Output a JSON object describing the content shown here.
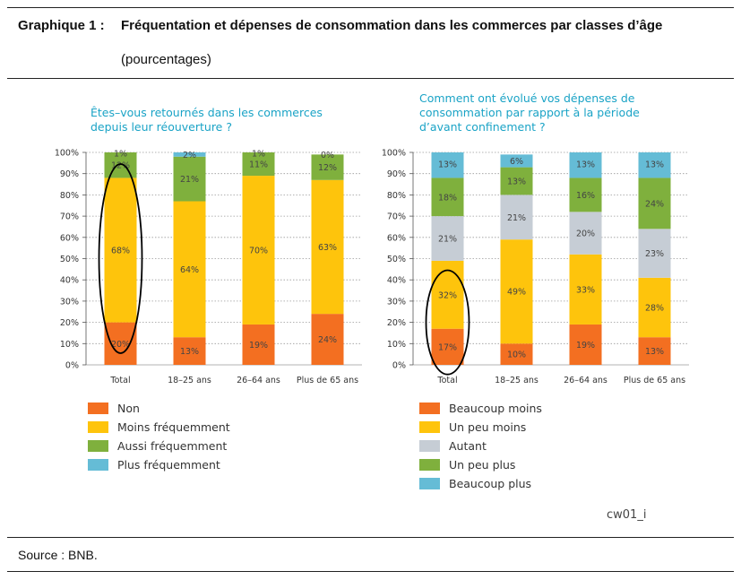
{
  "header": {
    "label": "Graphique 1 :",
    "title": "Fréquentation et dépenses de consommation dans les commerces par classes d’âge",
    "subtitle": "(pourcentages)"
  },
  "colors": {
    "orange": "#f36f21",
    "yellow": "#fec40c",
    "green": "#7fb03d",
    "grey": "#c6cdd5",
    "blue": "#65bcd6",
    "question": "#1aa3c6"
  },
  "chart_data": [
    {
      "type": "bar",
      "stacked": true,
      "title": "Êtes–vous retournés dans les commerces depuis leur réouverture ?",
      "categories": [
        "Total",
        "18–25 ans",
        "26–64 ans",
        "Plus de 65 ans"
      ],
      "ylim": [
        0,
        100
      ],
      "yticks": [
        "0%",
        "10%",
        "20%",
        "30%",
        "40%",
        "50%",
        "60%",
        "70%",
        "80%",
        "90%",
        "100%"
      ],
      "grid": true,
      "legend_position": "bottom",
      "series": [
        {
          "name": "Non",
          "color": "#f36f21",
          "values": [
            20,
            13,
            19,
            24
          ],
          "labels": [
            "20%",
            "13%",
            "19%",
            "24%"
          ]
        },
        {
          "name": "Moins fréquemment",
          "color": "#fec40c",
          "values": [
            68,
            64,
            70,
            63
          ],
          "labels": [
            "68%",
            "64%",
            "70%",
            "63%"
          ]
        },
        {
          "name": "Aussi fréquemment",
          "color": "#7fb03d",
          "values": [
            12,
            21,
            11,
            12
          ],
          "labels": [
            "12%",
            "21%",
            "11%",
            "12%"
          ]
        },
        {
          "name": "Plus fréquemment",
          "color": "#65bcd6",
          "values": [
            1,
            2,
            1,
            0
          ],
          "labels": [
            "1%",
            "2%",
            "1%",
            "0%"
          ]
        }
      ]
    },
    {
      "type": "bar",
      "stacked": true,
      "title": "Comment ont évolué vos dépenses de consommation par rapport à la période d’avant confinement ?",
      "categories": [
        "Total",
        "18–25 ans",
        "26–64 ans",
        "Plus de 65 ans"
      ],
      "ylim": [
        0,
        100
      ],
      "yticks": [
        "0%",
        "10%",
        "20%",
        "30%",
        "40%",
        "50%",
        "60%",
        "70%",
        "80%",
        "90%",
        "100%"
      ],
      "grid": true,
      "legend_position": "bottom",
      "series": [
        {
          "name": "Beaucoup moins",
          "color": "#f36f21",
          "values": [
            17,
            10,
            19,
            13
          ],
          "labels": [
            "17%",
            "10%",
            "19%",
            "13%"
          ]
        },
        {
          "name": "Un peu moins",
          "color": "#fec40c",
          "values": [
            32,
            49,
            33,
            28
          ],
          "labels": [
            "32%",
            "49%",
            "33%",
            "28%"
          ]
        },
        {
          "name": "Autant",
          "color": "#c6cdd5",
          "values": [
            21,
            21,
            20,
            23
          ],
          "labels": [
            "21%",
            "21%",
            "20%",
            "23%"
          ]
        },
        {
          "name": "Un peu plus",
          "color": "#7fb03d",
          "values": [
            18,
            13,
            16,
            24
          ],
          "labels": [
            "18%",
            "13%",
            "16%",
            "24%"
          ]
        },
        {
          "name": "Beaucoup plus",
          "color": "#65bcd6",
          "values": [
            13,
            6,
            13,
            13
          ],
          "labels": [
            "13%",
            "6%",
            "13%",
            "13%"
          ]
        }
      ]
    }
  ],
  "code": "cw01_i",
  "source": "Source : BNB."
}
